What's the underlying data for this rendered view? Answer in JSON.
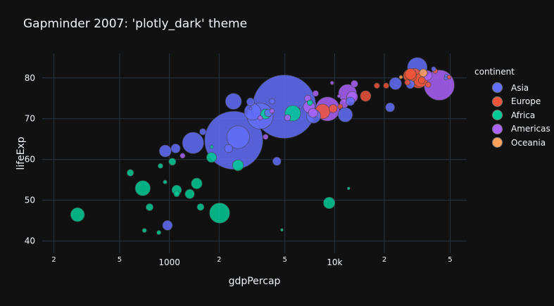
{
  "chart_data": {
    "type": "scatter",
    "title": "Gapminder 2007: 'plotly_dark' theme",
    "xlabel": "gdpPercap",
    "ylabel": "lifeExp",
    "x_scale": "log",
    "xlim": [
      170,
      63000
    ],
    "ylim": [
      37,
      86
    ],
    "x_ticks": [
      {
        "value": 200,
        "label": "2"
      },
      {
        "value": 500,
        "label": "5"
      },
      {
        "value": 1000,
        "label": "1000"
      },
      {
        "value": 2000,
        "label": "2"
      },
      {
        "value": 5000,
        "label": "5"
      },
      {
        "value": 10000,
        "label": "10k"
      },
      {
        "value": 20000,
        "label": "2"
      },
      {
        "value": 50000,
        "label": "5"
      }
    ],
    "y_ticks": [
      40,
      50,
      60,
      70,
      80
    ],
    "legend": {
      "title": "continent",
      "placement": "top-right"
    },
    "grid": true,
    "colors": {
      "Asia": "#636efa",
      "Europe": "#EF553B",
      "Africa": "#00cc96",
      "Americas": "#ab63fa",
      "Oceania": "#FFA15A"
    },
    "series": [
      {
        "name": "Asia",
        "points": [
          {
            "x": 4959,
            "y": 72.96,
            "pop": 1319
          },
          {
            "x": 2452,
            "y": 64.7,
            "pop": 1110
          },
          {
            "x": 3541,
            "y": 70.65,
            "pop": 224
          },
          {
            "x": 2605,
            "y": 65.48,
            "pop": 169
          },
          {
            "x": 1391,
            "y": 64.06,
            "pop": 150
          },
          {
            "x": 31656,
            "y": 82.6,
            "pop": 127
          },
          {
            "x": 3190,
            "y": 71.69,
            "pop": 91
          },
          {
            "x": 2442,
            "y": 74.25,
            "pop": 85
          },
          {
            "x": 11606,
            "y": 70.96,
            "pop": 69
          },
          {
            "x": 7458,
            "y": 70.62,
            "pop": 65
          },
          {
            "x": 944,
            "y": 62.07,
            "pop": 47
          },
          {
            "x": 23348,
            "y": 78.62,
            "pop": 49
          },
          {
            "x": 1091,
            "y": 62.7,
            "pop": 28
          },
          {
            "x": 974,
            "y": 43.83,
            "pop": 32
          },
          {
            "x": 12452,
            "y": 74.24,
            "pop": 24
          },
          {
            "x": 4471,
            "y": 59.55,
            "pop": 23
          },
          {
            "x": 28718,
            "y": 78.4,
            "pop": 23
          },
          {
            "x": 21655,
            "y": 72.78,
            "pop": 27
          },
          {
            "x": 3970,
            "y": 71.42,
            "pop": 19
          },
          {
            "x": 3096,
            "y": 74.14,
            "pop": 20
          },
          {
            "x": 1593,
            "y": 66.8,
            "pop": 14
          },
          {
            "x": 4185,
            "y": 74.25,
            "pop": 10
          },
          {
            "x": 47306,
            "y": 80.55,
            "pop": 3.2
          },
          {
            "x": 3095,
            "y": 72.54,
            "pop": 1.7
          },
          {
            "x": 2281,
            "y": 62.7,
            "pop": 22
          },
          {
            "x": 6223,
            "y": 72.8,
            "pop": 0.7
          },
          {
            "x": 39725,
            "y": 82.21,
            "pop": 6.9
          },
          {
            "x": 47143,
            "y": 79.97,
            "pop": 4.6
          }
        ]
      },
      {
        "name": "Europe",
        "points": [
          {
            "x": 32170,
            "y": 79.41,
            "pop": 82
          },
          {
            "x": 30470,
            "y": 80.66,
            "pop": 61
          },
          {
            "x": 33203,
            "y": 79.43,
            "pop": 61
          },
          {
            "x": 28570,
            "y": 80.55,
            "pop": 58
          },
          {
            "x": 28821,
            "y": 80.94,
            "pop": 40
          },
          {
            "x": 15390,
            "y": 75.56,
            "pop": 38
          },
          {
            "x": 8458,
            "y": 71.78,
            "pop": 71
          },
          {
            "x": 9787,
            "y": 72.48,
            "pop": 22
          },
          {
            "x": 36798,
            "y": 78.33,
            "pop": 10
          },
          {
            "x": 33692,
            "y": 79.44,
            "pop": 16
          },
          {
            "x": 18009,
            "y": 78.1,
            "pop": 10
          },
          {
            "x": 20510,
            "y": 78.1,
            "pop": 10
          },
          {
            "x": 27538,
            "y": 78.89,
            "pop": 10
          },
          {
            "x": 40676,
            "y": 81.7,
            "pop": 7.5
          },
          {
            "x": 49357,
            "y": 80.2,
            "pop": 4.6
          },
          {
            "x": 10808,
            "y": 73.0,
            "pop": 7.3
          }
        ]
      },
      {
        "name": "Africa",
        "points": [
          {
            "x": 2014,
            "y": 46.86,
            "pop": 135
          },
          {
            "x": 690,
            "y": 52.95,
            "pop": 76
          },
          {
            "x": 5581,
            "y": 71.34,
            "pop": 80
          },
          {
            "x": 278,
            "y": 46.46,
            "pop": 64
          },
          {
            "x": 9270,
            "y": 49.34,
            "pop": 44
          },
          {
            "x": 2602,
            "y": 58.56,
            "pop": 40
          },
          {
            "x": 1463,
            "y": 54.11,
            "pop": 39
          },
          {
            "x": 1107,
            "y": 52.52,
            "pop": 31
          },
          {
            "x": 1798,
            "y": 60.5,
            "pop": 33
          },
          {
            "x": 1328,
            "y": 51.54,
            "pop": 29
          },
          {
            "x": 3820,
            "y": 71.16,
            "pop": 33
          },
          {
            "x": 1042,
            "y": 59.45,
            "pop": 17
          },
          {
            "x": 1544,
            "y": 48.33,
            "pop": 16
          },
          {
            "x": 4797,
            "y": 42.73,
            "pop": 1.1
          },
          {
            "x": 759,
            "y": 48.3,
            "pop": 17
          },
          {
            "x": 7093,
            "y": 73.92,
            "pop": 10
          },
          {
            "x": 863,
            "y": 42.08,
            "pop": 6.1
          },
          {
            "x": 1107,
            "y": 51.54,
            "pop": 11
          },
          {
            "x": 1804,
            "y": 63.06,
            "pop": 3.3
          },
          {
            "x": 12154,
            "y": 52.9,
            "pop": 2.0
          },
          {
            "x": 706,
            "y": 42.59,
            "pop": 6.1
          },
          {
            "x": 580,
            "y": 56.73,
            "pop": 15
          },
          {
            "x": 942,
            "y": 54.47,
            "pop": 5.2
          },
          {
            "x": 883,
            "y": 58.42,
            "pop": 8.1
          }
        ]
      },
      {
        "name": "Americas",
        "points": [
          {
            "x": 42952,
            "y": 78.24,
            "pop": 301
          },
          {
            "x": 9066,
            "y": 72.39,
            "pop": 190
          },
          {
            "x": 11978,
            "y": 76.2,
            "pop": 108
          },
          {
            "x": 7007,
            "y": 72.89,
            "pop": 44
          },
          {
            "x": 12779,
            "y": 75.32,
            "pop": 40
          },
          {
            "x": 36319,
            "y": 80.65,
            "pop": 33
          },
          {
            "x": 7409,
            "y": 71.42,
            "pop": 28
          },
          {
            "x": 11416,
            "y": 73.75,
            "pop": 26
          },
          {
            "x": 13172,
            "y": 78.55,
            "pop": 16
          },
          {
            "x": 6873,
            "y": 74.99,
            "pop": 14
          },
          {
            "x": 5186,
            "y": 70.26,
            "pop": 12.6
          },
          {
            "x": 3822,
            "y": 65.55,
            "pop": 9.1
          },
          {
            "x": 1202,
            "y": 60.92,
            "pop": 8.5
          },
          {
            "x": 3548,
            "y": 70.2,
            "pop": 7.0
          },
          {
            "x": 4173,
            "y": 71.88,
            "pop": 6.9
          },
          {
            "x": 9645,
            "y": 78.78,
            "pop": 4.1
          },
          {
            "x": 7670,
            "y": 76.19,
            "pop": 11.4
          },
          {
            "x": 10611,
            "y": 75.54,
            "pop": 3.4
          }
        ]
      },
      {
        "name": "Oceania",
        "points": [
          {
            "x": 34435,
            "y": 81.24,
            "pop": 20.4
          },
          {
            "x": 25185,
            "y": 80.2,
            "pop": 4.1
          }
        ]
      }
    ]
  }
}
